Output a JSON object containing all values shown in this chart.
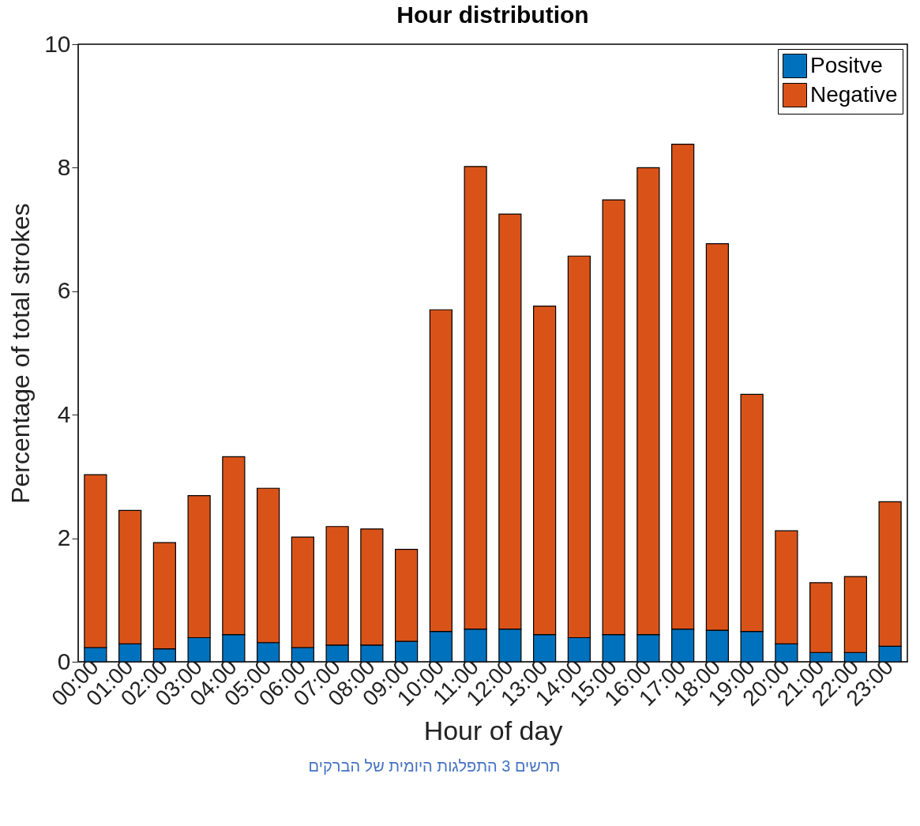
{
  "chart_data": {
    "type": "bar",
    "title": "Hour distribution",
    "xlabel": "Hour of day",
    "ylabel": "Percentage of total strokes",
    "stacked": true,
    "legend": "top right",
    "grid": false,
    "categories": [
      "00:00",
      "01:00",
      "02:00",
      "03:00",
      "04:00",
      "05:00",
      "06:00",
      "07:00",
      "08:00",
      "09:00",
      "10:00",
      "11:00",
      "12:00",
      "13:00",
      "14:00",
      "15:00",
      "16:00",
      "17:00",
      "18:00",
      "19:00",
      "20:00",
      "21:00",
      "22:00",
      "23:00"
    ],
    "series": [
      {
        "name": "Positve",
        "color": "#0072bd",
        "values": [
          0.23,
          0.29,
          0.21,
          0.39,
          0.44,
          0.31,
          0.23,
          0.27,
          0.27,
          0.33,
          0.49,
          0.53,
          0.53,
          0.44,
          0.39,
          0.44,
          0.44,
          0.53,
          0.51,
          0.49,
          0.29,
          0.15,
          0.15,
          0.25
        ]
      },
      {
        "name": "Negative",
        "color": "#d95319",
        "values": [
          2.8,
          2.16,
          1.72,
          2.3,
          2.88,
          2.5,
          1.79,
          1.92,
          1.88,
          1.49,
          5.21,
          7.49,
          6.72,
          5.32,
          6.18,
          7.04,
          7.56,
          7.85,
          6.26,
          3.84,
          1.83,
          1.13,
          1.23,
          2.34
        ]
      }
    ],
    "ylim": [
      0,
      10
    ],
    "yticks": [
      0,
      2,
      4,
      6,
      8,
      10
    ],
    "annotations": [
      "תרשים 3 התפלגות היומית של הברקים"
    ]
  }
}
